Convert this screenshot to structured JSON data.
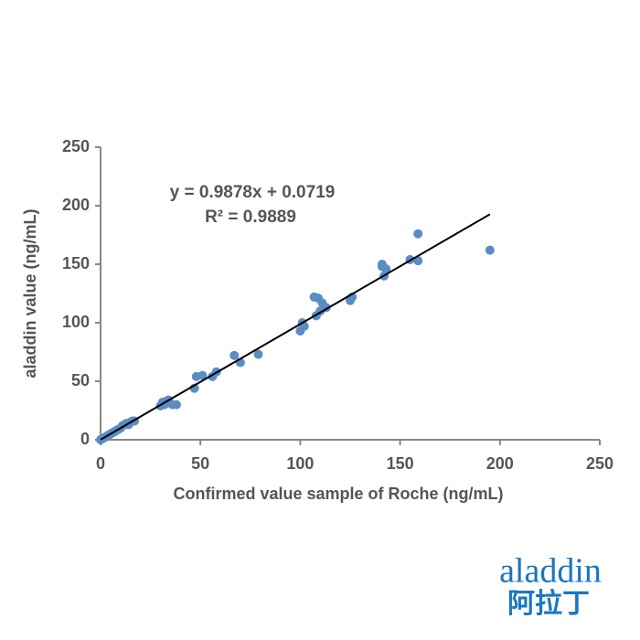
{
  "chart_data": {
    "type": "scatter",
    "x_label": "Confirmed value sample of Roche (ng/mL)",
    "y_label": "aladdin value (ng/mL)",
    "annotations": [
      "y = 0.9878x + 0.0719",
      "R² = 0.9889"
    ],
    "xlim": [
      0,
      250
    ],
    "xticks": [
      0,
      50,
      100,
      150,
      200,
      250
    ],
    "ylim": [
      0,
      250
    ],
    "yticks": [
      0,
      50,
      100,
      150,
      200,
      250
    ],
    "grid": false,
    "color": "#5b8cc6",
    "x": [
      0,
      1,
      2,
      3,
      4,
      5,
      6,
      7,
      8,
      9,
      10,
      11,
      12,
      13,
      14,
      15,
      16,
      17,
      30,
      31,
      32,
      33,
      34,
      36,
      38,
      47,
      48,
      51,
      56,
      58,
      67,
      70,
      79,
      100,
      101,
      102,
      107,
      109,
      108,
      110,
      111,
      113,
      125,
      126,
      141,
      141,
      142,
      143,
      155,
      159,
      159,
      195
    ],
    "values": [
      0,
      1,
      2,
      3,
      4,
      5,
      6,
      7,
      8,
      9,
      10,
      12,
      13,
      14,
      13,
      15,
      16,
      16,
      29,
      32,
      30,
      33,
      34,
      30,
      30,
      44,
      54,
      55,
      54,
      58,
      72,
      66,
      73,
      93,
      100,
      97,
      122,
      121,
      106,
      110,
      117,
      113,
      119,
      122,
      148,
      150,
      140,
      146,
      154,
      176,
      153,
      162
    ],
    "fit_line": {
      "color": "#000000",
      "x": [
        0,
        195
      ],
      "values": [
        0.07,
        192.7
      ]
    }
  },
  "logo": {
    "latin": "aladdin",
    "chinese": "阿拉丁"
  }
}
